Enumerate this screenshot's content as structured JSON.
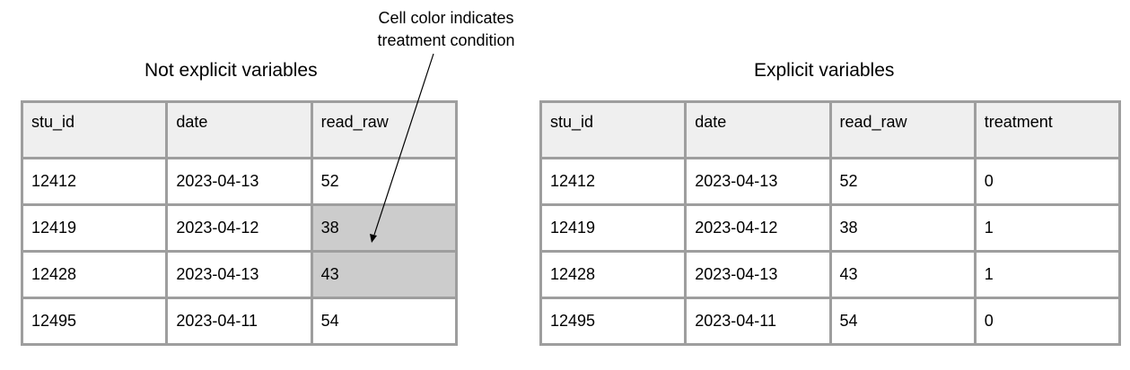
{
  "annotation": {
    "line1": "Cell color indicates",
    "line2": "treatment condition"
  },
  "left_panel": {
    "title": "Not explicit variables",
    "headers": [
      "stu_id",
      "date",
      "read_raw"
    ],
    "rows": [
      [
        "12412",
        "2023-04-13",
        "52"
      ],
      [
        "12419",
        "2023-04-12",
        "38"
      ],
      [
        "12428",
        "2023-04-13",
        "43"
      ],
      [
        "12495",
        "2023-04-11",
        "54"
      ]
    ],
    "shaded_cells": [
      [
        1,
        2
      ],
      [
        2,
        2
      ]
    ],
    "shade_color": "#cccccc"
  },
  "right_panel": {
    "title": "Explicit variables",
    "headers": [
      "stu_id",
      "date",
      "read_raw",
      "treatment"
    ],
    "rows": [
      [
        "12412",
        "2023-04-13",
        "52",
        "0"
      ],
      [
        "12419",
        "2023-04-12",
        "38",
        "1"
      ],
      [
        "12428",
        "2023-04-13",
        "43",
        "1"
      ],
      [
        "12495",
        "2023-04-11",
        "54",
        "0"
      ]
    ]
  },
  "colors": {
    "border": "#9e9e9e",
    "header_bg": "#efefef",
    "shaded_bg": "#cccccc"
  }
}
